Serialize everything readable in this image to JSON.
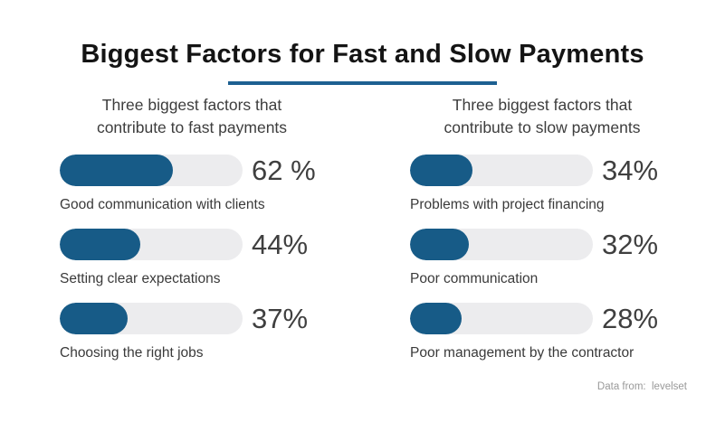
{
  "title": "Biggest Factors for Fast and Slow Payments",
  "accent_color": "#175b87",
  "underline_color": "#1d6091",
  "track_color": "#ececee",
  "attribution": "Data from:  levelset",
  "chart_data": {
    "type": "bar",
    "title": "Biggest Factors for Fast and Slow Payments",
    "xlim": [
      0,
      100
    ],
    "orientation": "horizontal",
    "groups": [
      {
        "heading_line1": "Three biggest factors that",
        "heading_line2": "contribute to fast payments",
        "items": [
          {
            "label": "Good communication with clients",
            "value": 62,
            "value_label": "62 %"
          },
          {
            "label": "Setting clear expectations",
            "value": 44,
            "value_label": "44%"
          },
          {
            "label": "Choosing the right jobs",
            "value": 37,
            "value_label": "37%"
          }
        ]
      },
      {
        "heading_line1": "Three biggest factors that",
        "heading_line2": "contribute to slow payments",
        "items": [
          {
            "label": "Problems with project financing",
            "value": 34,
            "value_label": "34%"
          },
          {
            "label": "Poor communication",
            "value": 32,
            "value_label": "32%"
          },
          {
            "label": "Poor management by the contractor",
            "value": 28,
            "value_label": "28%"
          }
        ]
      }
    ]
  }
}
